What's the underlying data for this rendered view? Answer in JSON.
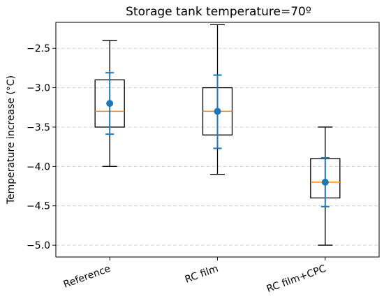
{
  "chart_data": {
    "type": "box",
    "title": "Storage tank temperature=70º",
    "xlabel": "",
    "ylabel": "Temperature increase (°C)",
    "ylim": [
      -5.15,
      -2.17
    ],
    "yticks": [
      -2.5,
      -3.0,
      -3.5,
      -4.0,
      -4.5,
      -5.0
    ],
    "ytick_labels": [
      "−2.5",
      "−3.0",
      "−3.5",
      "−4.0",
      "−4.5",
      "−5.0"
    ],
    "grid": "y-dashed",
    "categories": [
      "Reference",
      "RC film",
      "RC film+CPC"
    ],
    "boxes": [
      {
        "whislo": -4.0,
        "q1": -3.5,
        "med": -3.3,
        "q3": -2.9,
        "whishi": -2.4
      },
      {
        "whislo": -4.1,
        "q1": -3.6,
        "med": -3.3,
        "q3": -3.0,
        "whishi": -2.2
      },
      {
        "whislo": -5.0,
        "q1": -4.4,
        "med": -4.2,
        "q3": -3.9,
        "whishi": -3.5
      }
    ],
    "error_bars": [
      {
        "mean": -3.2,
        "lower": -3.59,
        "upper": -2.81
      },
      {
        "mean": -3.3,
        "lower": -3.77,
        "upper": -2.84
      },
      {
        "mean": -4.2,
        "lower": -4.51,
        "upper": -3.89
      }
    ],
    "colors": {
      "box": "#000000",
      "median": "#ff7f0e",
      "mean_errorbar": "#1f77b4",
      "grid": "#cccccc"
    }
  }
}
